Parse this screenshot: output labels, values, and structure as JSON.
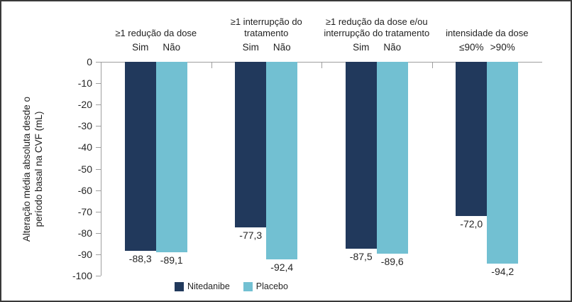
{
  "chart_data": {
    "type": "bar",
    "title": "",
    "ylabel_lines": [
      "Alteração média absoluta desde o",
      "período basal na CVF (mL)"
    ],
    "xlabel": "",
    "y_axis": {
      "min": -100,
      "max": 0,
      "step": 10,
      "tick_labels": [
        "0",
        "-10",
        "-20",
        "-30",
        "-40",
        "-50",
        "-60",
        "-70",
        "-80",
        "-90",
        "-100"
      ]
    },
    "grid": false,
    "legend_position": "bottom",
    "series": [
      {
        "name": "Nitedanibe",
        "color": "#21395C",
        "values": [
          -88.3,
          -77.3,
          -87.5,
          -72.0
        ]
      },
      {
        "name": "Placebo",
        "color": "#72C0D2",
        "values": [
          -89.1,
          -92.4,
          -89.6,
          -94.2
        ]
      }
    ],
    "groups": [
      {
        "header_lines": [
          "≥1 redução  da dose"
        ],
        "sub_labels": [
          "Sim",
          "Não"
        ],
        "value_labels": [
          "-88,3",
          "-89,1"
        ]
      },
      {
        "header_lines": [
          "≥1 interrupção do",
          "tratamento"
        ],
        "sub_labels": [
          "Sim",
          "Não"
        ],
        "value_labels": [
          "-77,3",
          "-92,4"
        ]
      },
      {
        "header_lines": [
          "≥1 redução da dose e/ou",
          "interrupção  do tratamento"
        ],
        "sub_labels": [
          "Sim",
          "Não"
        ],
        "value_labels": [
          "-87,5",
          "-89,6"
        ]
      },
      {
        "header_lines": [
          "intensidade  da dose"
        ],
        "sub_labels": [
          "≤90%",
          ">90%"
        ],
        "value_labels": [
          "-72,0",
          "-94,2"
        ]
      }
    ],
    "legend": [
      "Nitedanibe",
      "Placebo"
    ]
  },
  "colors": {
    "nitedanibe": "#21395C",
    "placebo": "#72C0D2",
    "axis": "#9E9E9E",
    "text": "#262626"
  }
}
